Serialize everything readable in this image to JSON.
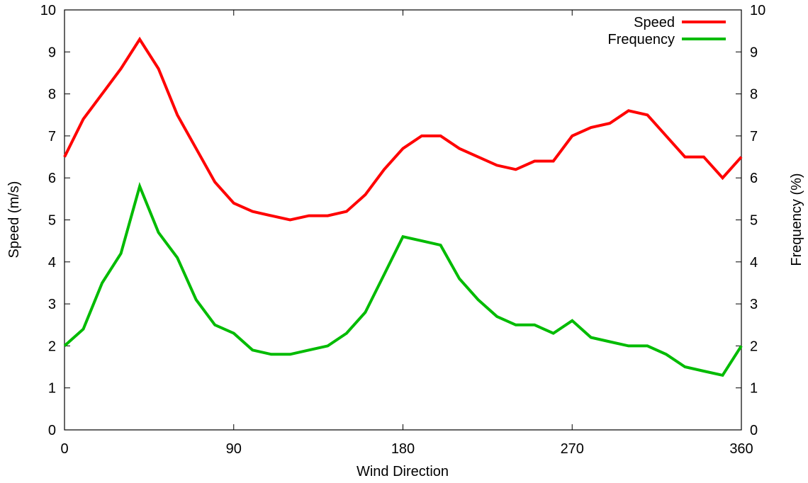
{
  "chart_data": {
    "type": "line",
    "title": "",
    "xlabel": "Wind Direction",
    "ylabel": "Speed (m/s)",
    "y2label": "Frequency (%)",
    "xlim": [
      0,
      360
    ],
    "ylim": [
      0,
      10
    ],
    "y2lim": [
      0,
      10
    ],
    "xticks": [
      "0",
      "90",
      "180",
      "270",
      "360"
    ],
    "xtick_values": [
      0,
      90,
      180,
      270,
      360
    ],
    "yticks": [
      "0",
      "1",
      "2",
      "3",
      "4",
      "5",
      "6",
      "7",
      "8",
      "9",
      "10"
    ],
    "y2ticks": [
      "0",
      "1",
      "2",
      "3",
      "4",
      "5",
      "6",
      "7",
      "8",
      "9",
      "10"
    ],
    "grid": false,
    "legend_position": "top-right",
    "x": [
      0,
      10,
      20,
      30,
      40,
      50,
      60,
      70,
      80,
      90,
      100,
      110,
      120,
      130,
      140,
      150,
      160,
      170,
      180,
      190,
      200,
      210,
      220,
      230,
      240,
      250,
      260,
      270,
      280,
      290,
      300,
      310,
      320,
      330,
      340,
      350,
      360
    ],
    "series": [
      {
        "name": "Speed",
        "color": "#ff0000",
        "axis": "left",
        "values": [
          6.5,
          7.4,
          8.0,
          8.6,
          9.3,
          8.6,
          7.5,
          6.7,
          5.9,
          5.4,
          5.2,
          5.1,
          5.0,
          5.1,
          5.1,
          5.2,
          5.6,
          6.2,
          6.7,
          7.0,
          7.0,
          6.7,
          6.5,
          6.3,
          6.2,
          6.4,
          6.4,
          7.0,
          7.2,
          7.3,
          7.6,
          7.5,
          7.0,
          6.5,
          6.5,
          6.0,
          6.5
        ]
      },
      {
        "name": "Frequency",
        "color": "#00bb00",
        "axis": "right",
        "values": [
          2.0,
          2.4,
          3.5,
          4.2,
          5.8,
          4.7,
          4.1,
          3.1,
          2.5,
          2.3,
          1.9,
          1.8,
          1.8,
          1.9,
          2.0,
          2.3,
          2.8,
          3.7,
          4.6,
          4.5,
          4.4,
          3.6,
          3.1,
          2.7,
          2.5,
          2.5,
          2.3,
          2.6,
          2.2,
          2.1,
          2.0,
          2.0,
          1.8,
          1.5,
          1.4,
          1.3,
          2.0
        ]
      }
    ]
  }
}
